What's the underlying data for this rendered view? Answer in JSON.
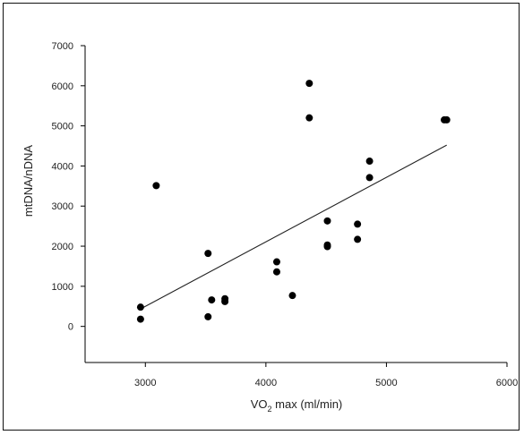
{
  "chart_data": {
    "type": "scatter",
    "xlabel": "VO",
    "xlabel_sub": "2",
    "xlabel_rest": " max (ml/min)",
    "ylabel": "mtDNA/nDNA",
    "xlim": [
      2500,
      6000
    ],
    "ylim": [
      -900,
      7000
    ],
    "x_ticks": [
      3000,
      4000,
      5000,
      6000
    ],
    "y_ticks": [
      0,
      1000,
      2000,
      3000,
      4000,
      5000,
      6000,
      7000
    ],
    "grid": false,
    "colors": {
      "points": "#000000",
      "line": "#222222",
      "axes": "#000000"
    },
    "points": [
      {
        "x": 2960,
        "y": 480
      },
      {
        "x": 2960,
        "y": 180
      },
      {
        "x": 3090,
        "y": 3510
      },
      {
        "x": 3520,
        "y": 1820
      },
      {
        "x": 3520,
        "y": 240
      },
      {
        "x": 3550,
        "y": 660
      },
      {
        "x": 3660,
        "y": 690
      },
      {
        "x": 3660,
        "y": 620
      },
      {
        "x": 4090,
        "y": 1610
      },
      {
        "x": 4090,
        "y": 1360
      },
      {
        "x": 4220,
        "y": 770
      },
      {
        "x": 4360,
        "y": 6060
      },
      {
        "x": 4360,
        "y": 5200
      },
      {
        "x": 4510,
        "y": 2630
      },
      {
        "x": 4510,
        "y": 2030
      },
      {
        "x": 4510,
        "y": 1990
      },
      {
        "x": 4760,
        "y": 2550
      },
      {
        "x": 4760,
        "y": 2170
      },
      {
        "x": 4860,
        "y": 4120
      },
      {
        "x": 4860,
        "y": 3710
      },
      {
        "x": 5480,
        "y": 5150
      },
      {
        "x": 5500,
        "y": 5150
      }
    ],
    "fit_line": {
      "x": [
        2950,
        5500
      ],
      "y": [
        420,
        4520
      ]
    }
  }
}
